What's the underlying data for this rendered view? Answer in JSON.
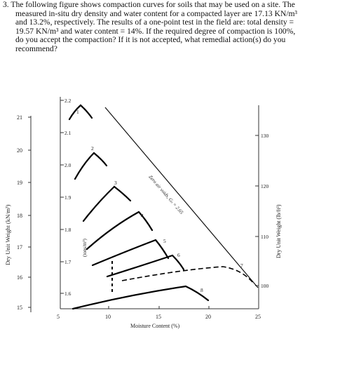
{
  "question": {
    "line_1": "3. The following figure shows compaction curves for soils that may be used on a site. The",
    "line_2": "measured in-situ dry density and water content for a compacted layer are 17.13 KN/m³",
    "line_3": "and 13.2%, respectively. The results of a one-point test in the field are: total density =",
    "line_4": "19.57 KN/m³ and water content = 14%. If the required degree of compaction is 100%,",
    "line_5": "do you accept the compaction? If it is not accepted, what remedial action(s) do you",
    "line_6": "recommend?"
  },
  "figure": {
    "left_axis_label": "Dry Unit Weight (kN/m³)",
    "right_axis_label": "Dry Unit Weight (lb/ft³)",
    "inner_axis_label": "(tons/m³)",
    "x_axis_label": "Moisture Content (%)",
    "zero_air_voids_label": "Zero air voids, Gₛ = 2.65",
    "left_ticks": [
      "21",
      "20",
      "19",
      "18",
      "17",
      "16",
      "15"
    ],
    "inner_ticks": [
      "2.2",
      "2.1",
      "2.0",
      "1.9",
      "1.8",
      "1.7",
      "1.6"
    ],
    "right_ticks": [
      "130",
      "120",
      "110",
      "100"
    ],
    "x_ticks": [
      "5",
      "10",
      "15",
      "20",
      "25"
    ],
    "curve_labels": [
      "1",
      "2",
      "3",
      "4",
      "5",
      "6",
      "7",
      "8"
    ]
  }
}
